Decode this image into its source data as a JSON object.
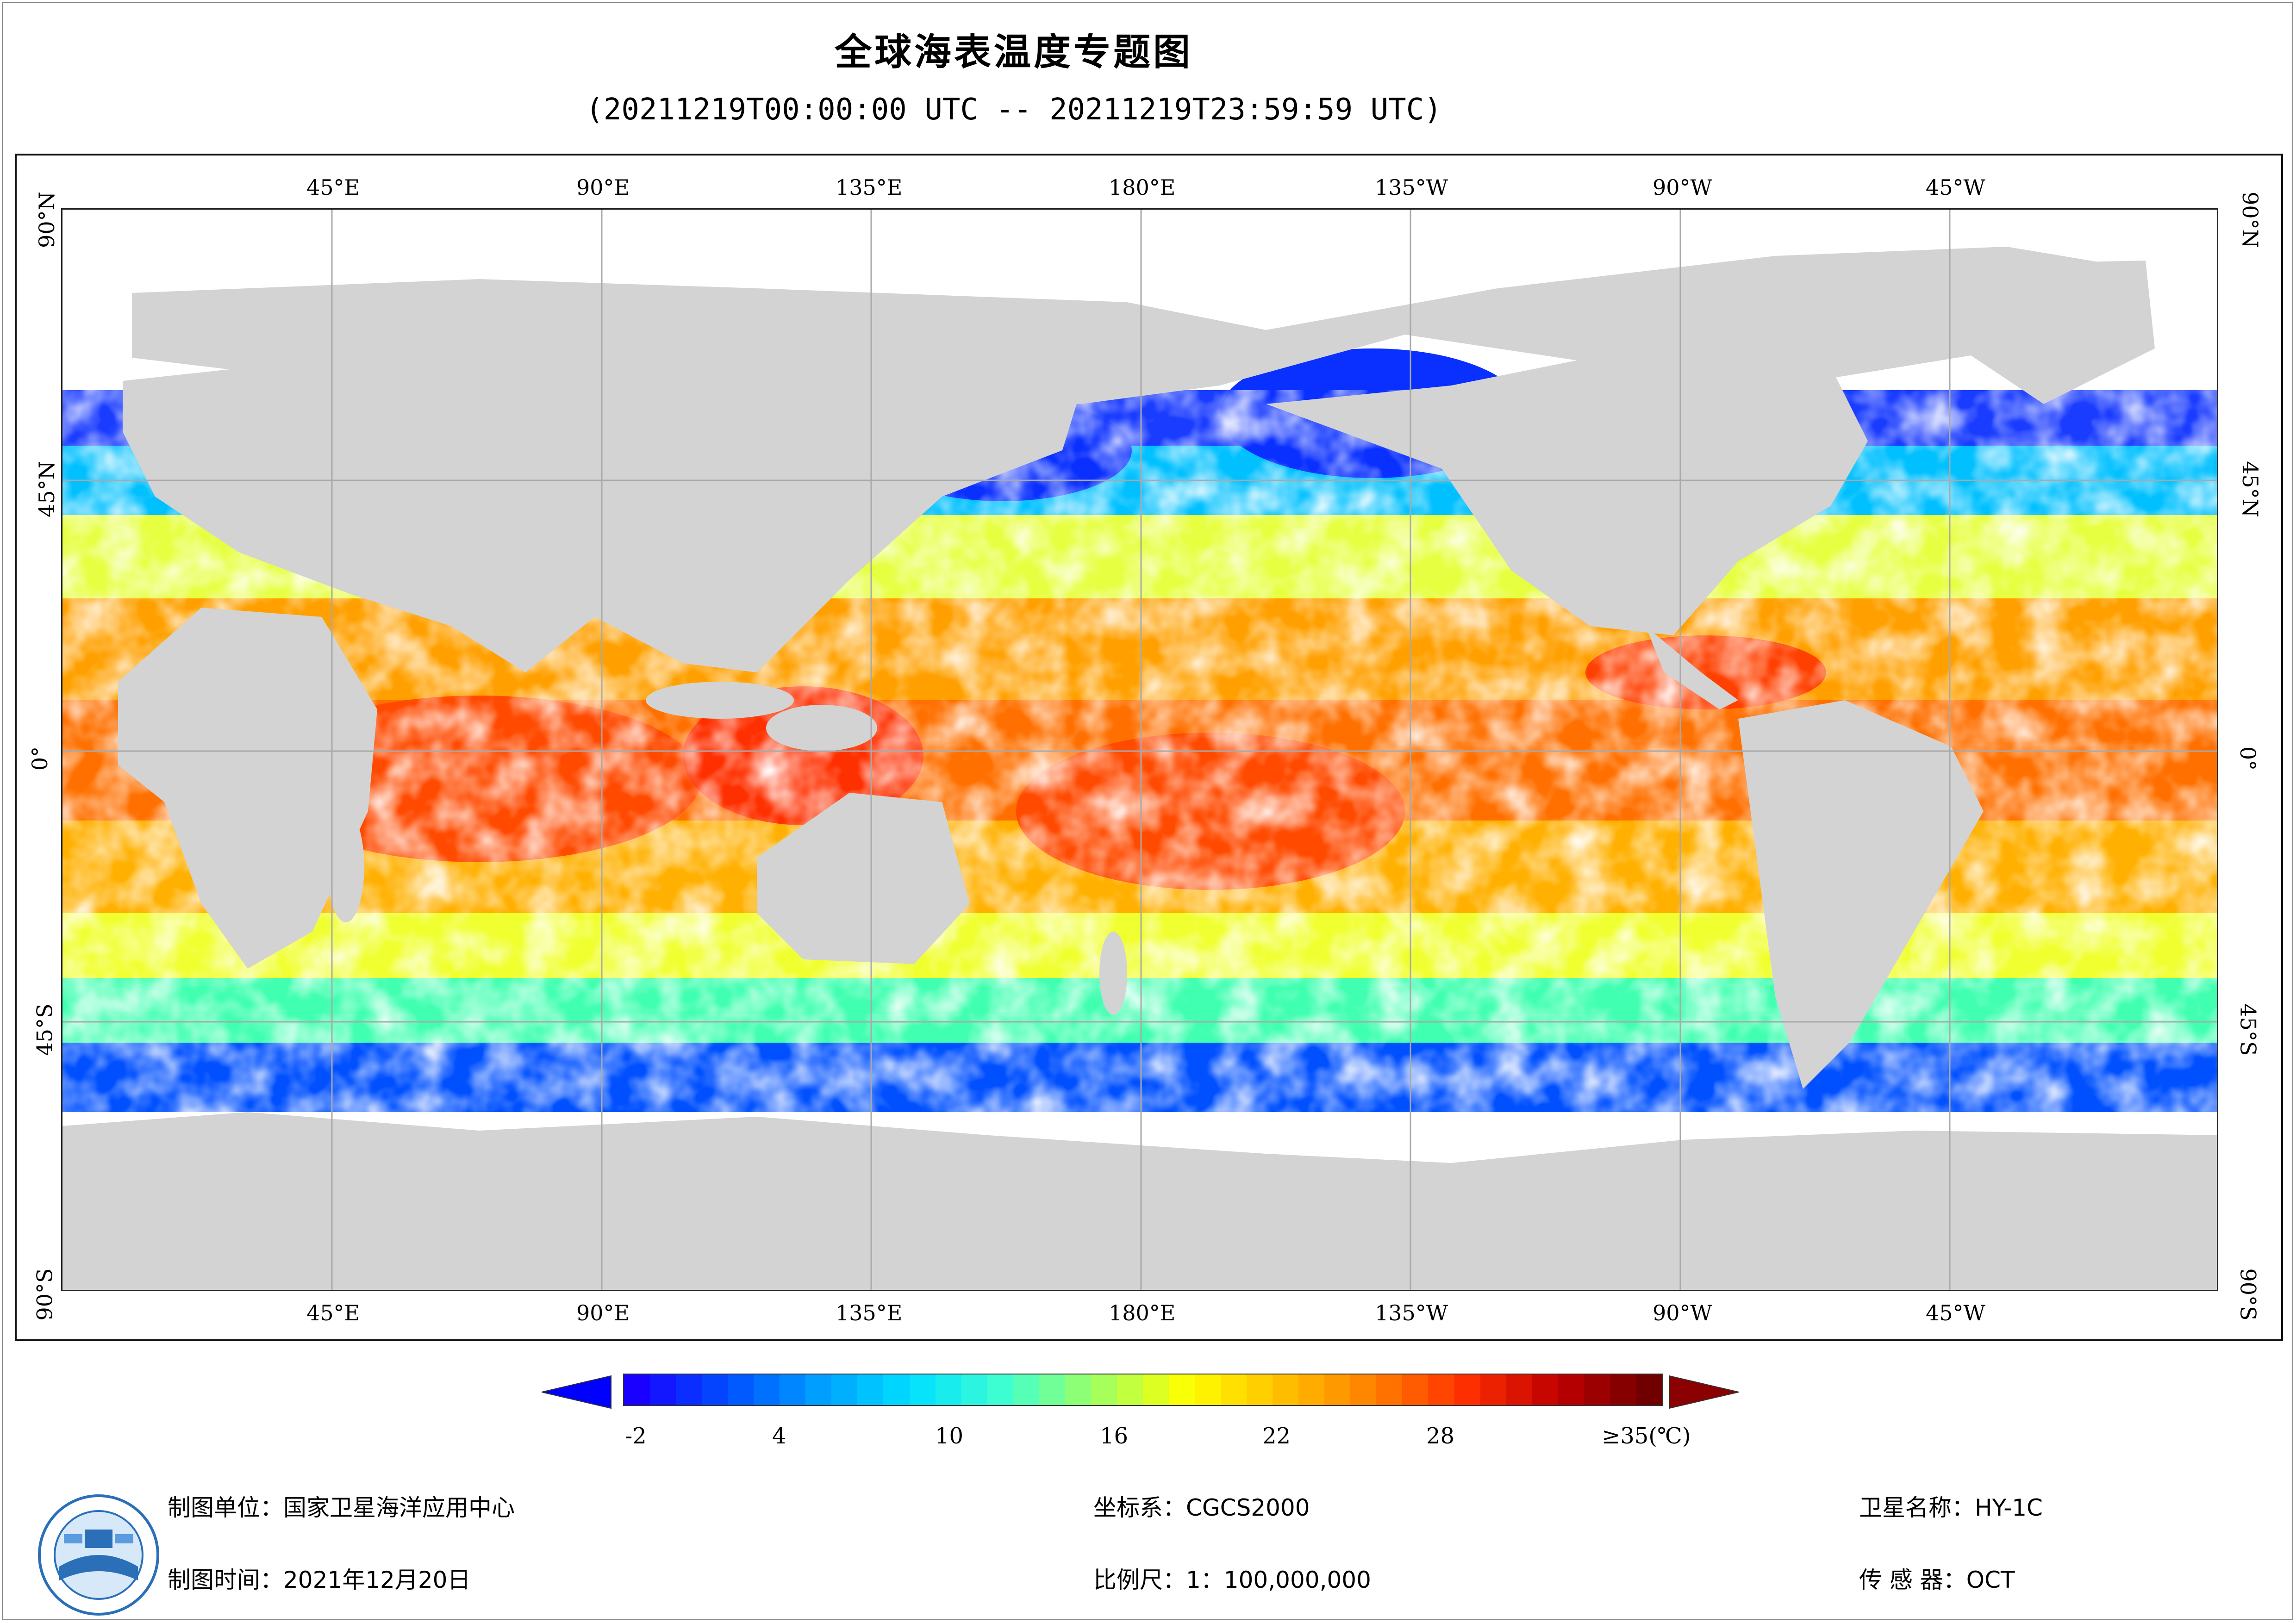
{
  "title": "全球海表温度专题图",
  "subtitle": "(20211219T00:00:00 UTC -- 20211219T23:59:59 UTC)",
  "map": {
    "lon_labels": [
      "45°E",
      "90°E",
      "135°E",
      "180°E",
      "135°W",
      "90°W",
      "45°W"
    ],
    "lat_labels": [
      "90°N",
      "45°N",
      "0°",
      "45°S",
      "90°S"
    ],
    "land_color": "#d3d3d3",
    "grid_color": "#a9a9a9"
  },
  "colorbar": {
    "ticks": [
      "-2",
      "4",
      "10",
      "16",
      "22",
      "28",
      "≥35(℃)"
    ],
    "under_color": "#0000ff",
    "over_color": "#8b0000",
    "stops": [
      "#1a00ff",
      "#0050ff",
      "#00a0ff",
      "#00e0ff",
      "#40ffd0",
      "#a0ff60",
      "#ffff00",
      "#ffc000",
      "#ff8000",
      "#ff3000",
      "#c00000",
      "#700000"
    ]
  },
  "footer": {
    "unit": "制图单位：国家卫星海洋应用中心",
    "date": "制图时间：2021年12月20日",
    "crs": "坐标系：CGCS2000",
    "scale": "比例尺：1：100,000,000",
    "satellite": "卫星名称：HY-1C",
    "sensor": "传  感  器：OCT"
  }
}
